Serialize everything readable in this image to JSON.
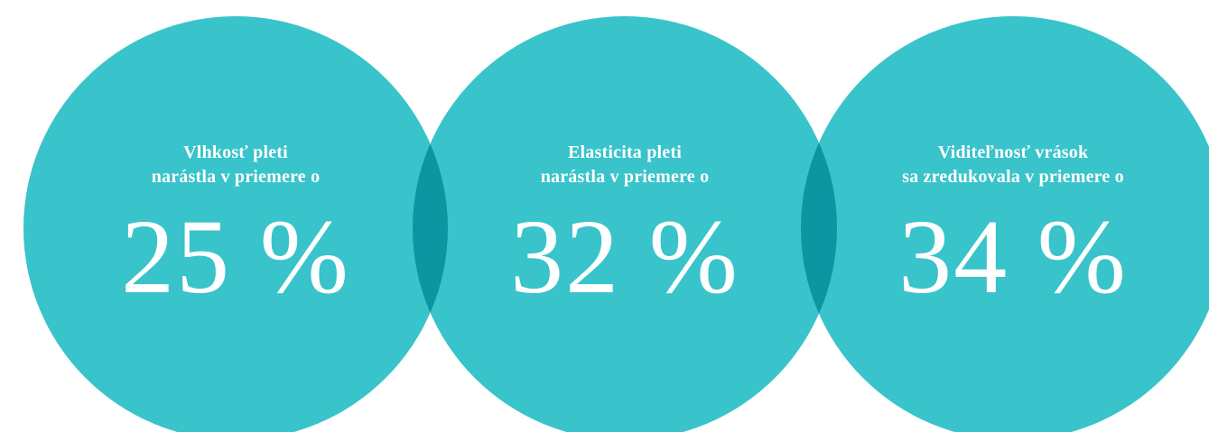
{
  "colors": {
    "circle": "#2ec0c8",
    "overlap": "#17adb5",
    "text": "#ffffff",
    "background": "#ffffff"
  },
  "stats": [
    {
      "line1": "Vlhkosť pleti",
      "line2": "narástla v priemere o",
      "value": "25 %"
    },
    {
      "line1": "Elasticita pleti",
      "line2": "narástla v priemere o",
      "value": "32 %"
    },
    {
      "line1": "Viditeľnosť vrások",
      "line2": "sa zredukovala v priemere o",
      "value": "34 %"
    }
  ]
}
